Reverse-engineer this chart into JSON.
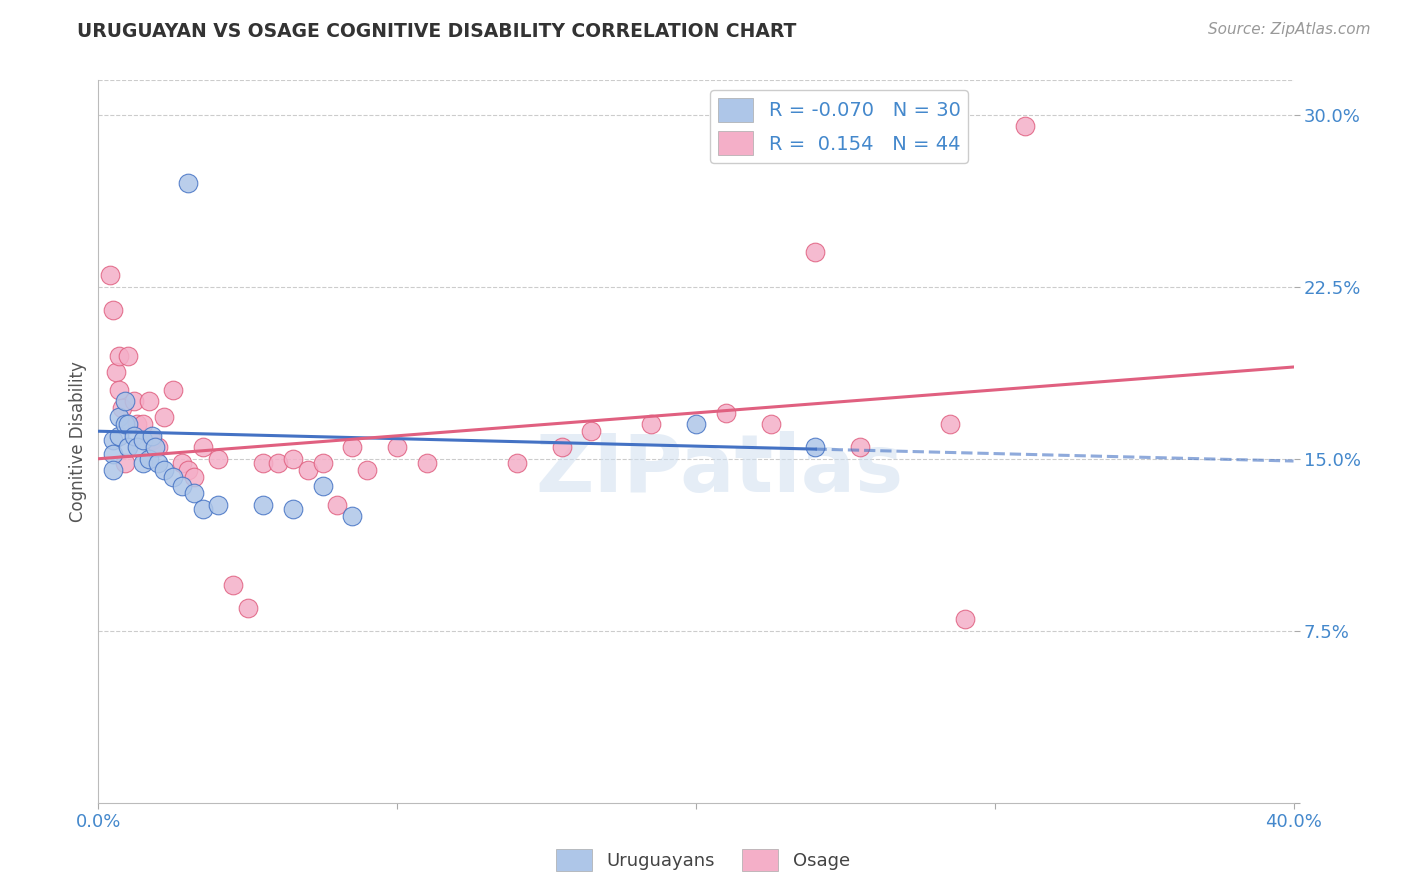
{
  "title": "URUGUAYAN VS OSAGE COGNITIVE DISABILITY CORRELATION CHART",
  "source": "Source: ZipAtlas.com",
  "ylabel": "Cognitive Disability",
  "yticks": [
    0.0,
    0.075,
    0.15,
    0.225,
    0.3
  ],
  "ytick_labels": [
    "",
    "7.5%",
    "15.0%",
    "22.5%",
    "30.0%"
  ],
  "xmin": 0.0,
  "xmax": 0.4,
  "ymin": 0.0,
  "ymax": 0.315,
  "blue_R": -0.07,
  "blue_N": 30,
  "pink_R": 0.154,
  "pink_N": 44,
  "blue_color": "#aec6e8",
  "pink_color": "#f4afc8",
  "blue_line_color": "#4472c4",
  "pink_line_color": "#e06080",
  "legend_label_blue": "Uruguayans",
  "legend_label_pink": "Osage",
  "blue_x": [
    0.005,
    0.005,
    0.005,
    0.007,
    0.007,
    0.009,
    0.009,
    0.01,
    0.01,
    0.012,
    0.013,
    0.015,
    0.015,
    0.017,
    0.018,
    0.019,
    0.02,
    0.022,
    0.025,
    0.028,
    0.03,
    0.032,
    0.035,
    0.04,
    0.055,
    0.065,
    0.075,
    0.085,
    0.2,
    0.24
  ],
  "blue_y": [
    0.158,
    0.152,
    0.145,
    0.168,
    0.16,
    0.175,
    0.165,
    0.165,
    0.155,
    0.16,
    0.155,
    0.158,
    0.148,
    0.15,
    0.16,
    0.155,
    0.148,
    0.145,
    0.142,
    0.138,
    0.27,
    0.135,
    0.128,
    0.13,
    0.13,
    0.128,
    0.138,
    0.125,
    0.165,
    0.155
  ],
  "pink_x": [
    0.004,
    0.005,
    0.006,
    0.007,
    0.007,
    0.008,
    0.009,
    0.01,
    0.012,
    0.013,
    0.015,
    0.017,
    0.018,
    0.02,
    0.022,
    0.025,
    0.028,
    0.03,
    0.032,
    0.035,
    0.04,
    0.045,
    0.05,
    0.055,
    0.06,
    0.065,
    0.07,
    0.075,
    0.08,
    0.085,
    0.09,
    0.1,
    0.11,
    0.14,
    0.155,
    0.165,
    0.185,
    0.21,
    0.225,
    0.24,
    0.255,
    0.285,
    0.29,
    0.31
  ],
  "pink_y": [
    0.23,
    0.215,
    0.188,
    0.195,
    0.18,
    0.172,
    0.148,
    0.195,
    0.175,
    0.165,
    0.165,
    0.175,
    0.158,
    0.155,
    0.168,
    0.18,
    0.148,
    0.145,
    0.142,
    0.155,
    0.15,
    0.095,
    0.085,
    0.148,
    0.148,
    0.15,
    0.145,
    0.148,
    0.13,
    0.155,
    0.145,
    0.155,
    0.148,
    0.148,
    0.155,
    0.162,
    0.165,
    0.17,
    0.165,
    0.24,
    0.155,
    0.165,
    0.08,
    0.295
  ]
}
